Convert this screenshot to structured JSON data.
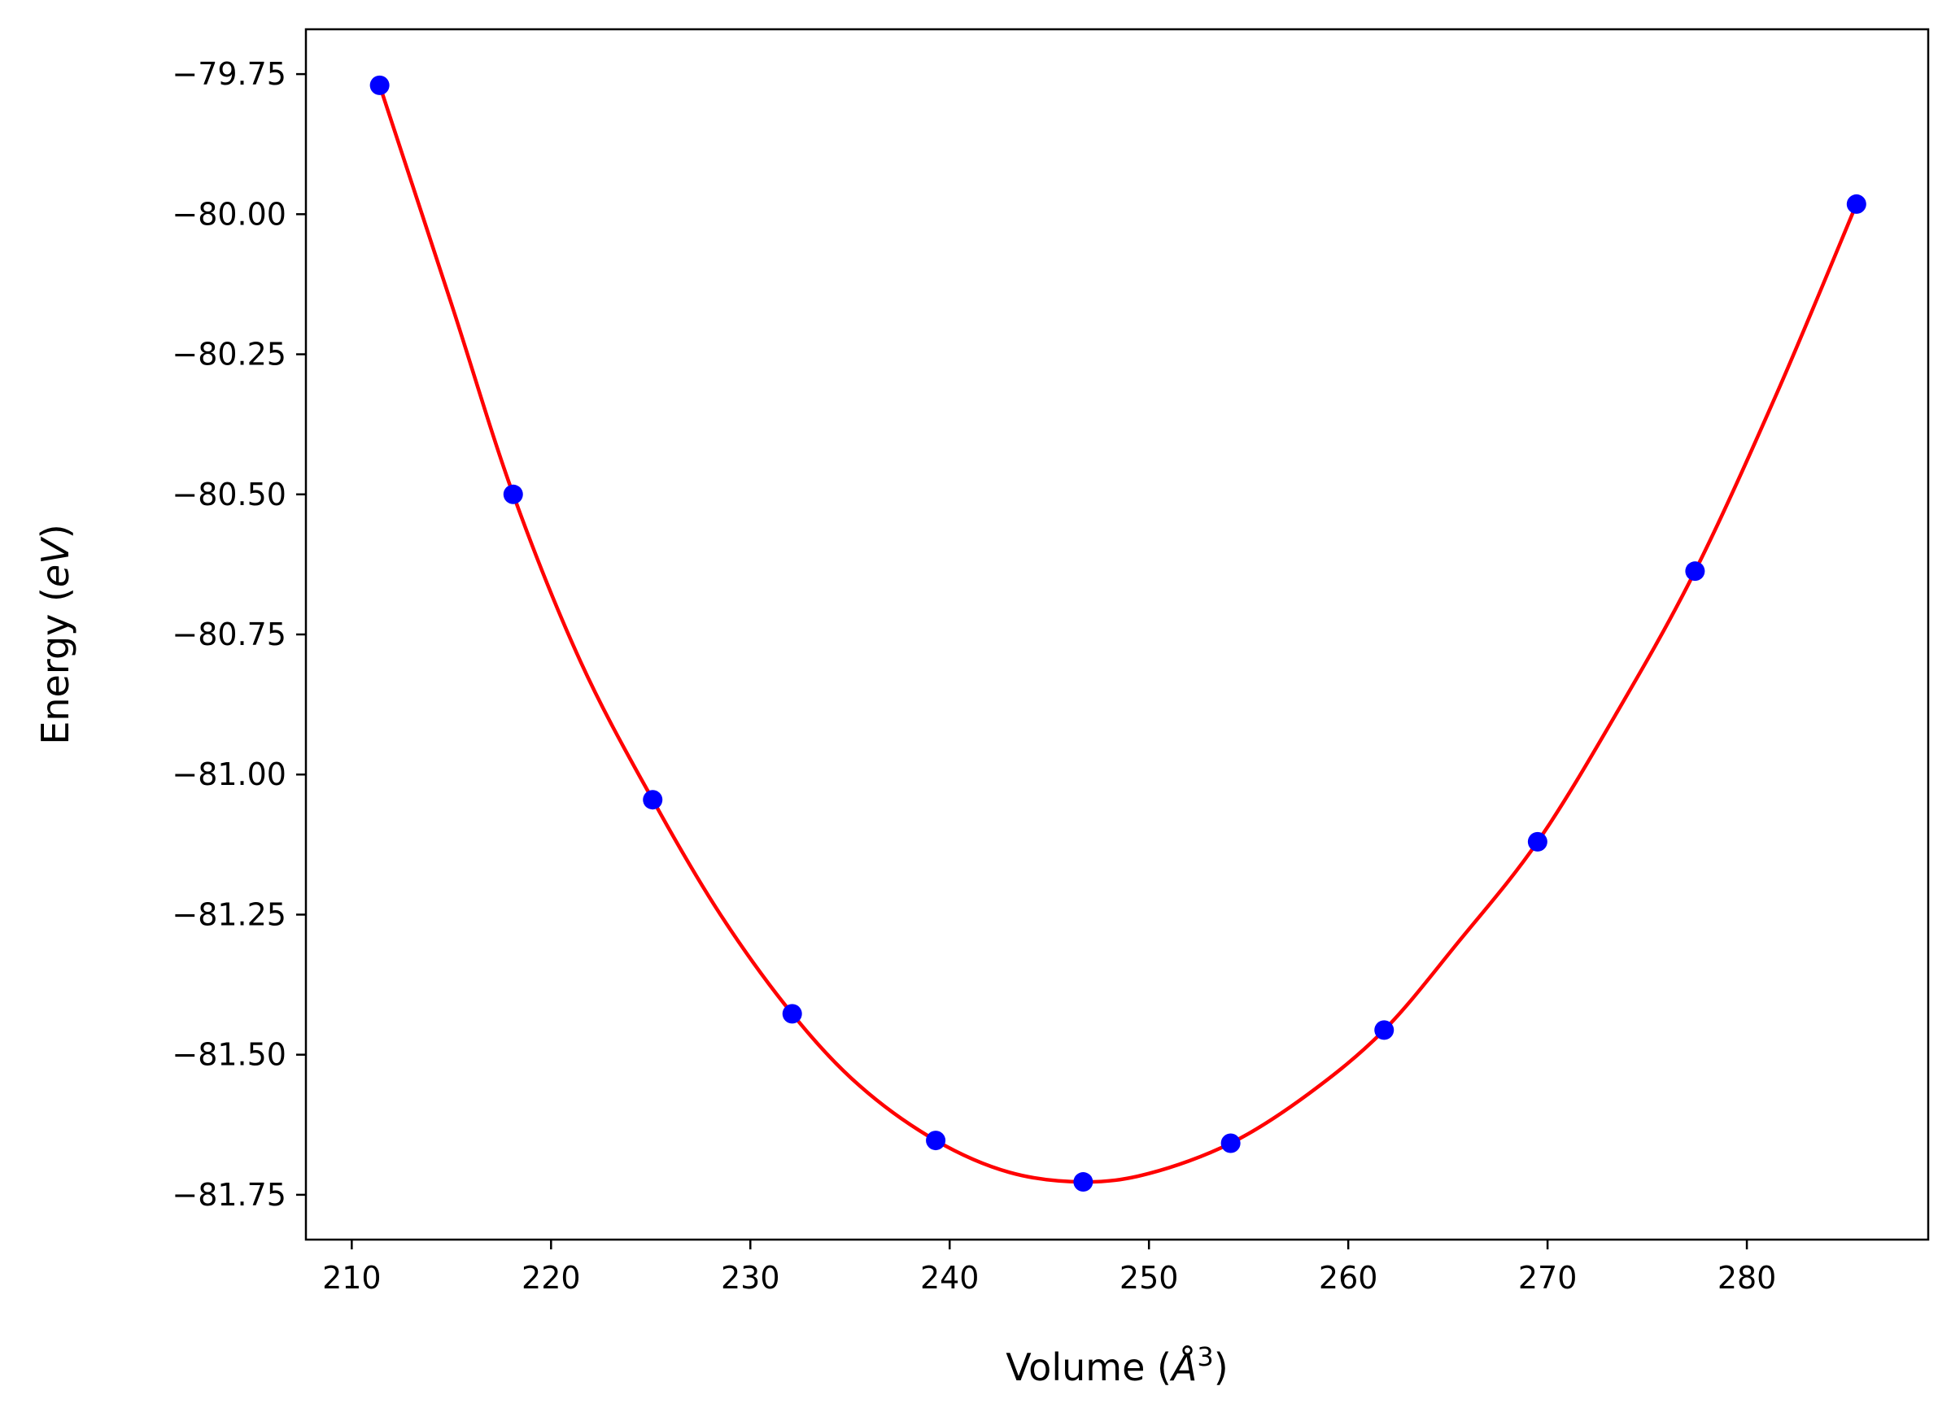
{
  "chart_data": {
    "type": "scatter",
    "title": "",
    "xlabel": {
      "prefix": "Volume (",
      "symbol": "Å",
      "superscript": "3",
      "suffix": ")"
    },
    "ylabel": {
      "prefix": "Energy (",
      "symbol": "eV",
      "suffix": ")"
    },
    "xlim": [
      207.7,
      289.1
    ],
    "ylim": [
      -81.83,
      -79.67
    ],
    "x_ticks": [
      210,
      220,
      230,
      240,
      250,
      260,
      270,
      280
    ],
    "x_tick_labels": [
      "210",
      "220",
      "230",
      "240",
      "250",
      "260",
      "270",
      "280"
    ],
    "y_ticks": [
      -79.75,
      -80.0,
      -80.25,
      -80.5,
      -80.75,
      -81.0,
      -81.25,
      -81.5,
      -81.75
    ],
    "y_tick_labels": [
      "−79.75",
      "−80.00",
      "−80.25",
      "−80.50",
      "−80.75",
      "−81.00",
      "−81.25",
      "−81.50",
      "−81.75"
    ],
    "grid": false,
    "series": [
      {
        "kind": "points",
        "color": "#0000ff",
        "x": [
          211.4,
          218.1,
          225.1,
          232.1,
          239.3,
          246.7,
          254.1,
          261.8,
          269.5,
          277.4,
          285.5
        ],
        "y": [
          -79.77,
          -80.5,
          -81.045,
          -81.427,
          -81.653,
          -81.727,
          -81.658,
          -81.456,
          -81.12,
          -80.637,
          -79.982
        ]
      },
      {
        "kind": "fit-curve",
        "color": "#ff0000",
        "x": [
          211.4,
          215.0,
          218.1,
          221.5,
          225.1,
          228.5,
          232.1,
          235.5,
          239.3,
          243.0,
          246.7,
          250.0,
          254.1,
          258.0,
          261.8,
          265.5,
          269.5,
          273.5,
          277.4,
          281.5,
          285.5
        ],
        "y": [
          -79.77,
          -80.16,
          -80.5,
          -80.8,
          -81.045,
          -81.25,
          -81.427,
          -81.556,
          -81.653,
          -81.71,
          -81.727,
          -81.712,
          -81.658,
          -81.57,
          -81.456,
          -81.3,
          -81.12,
          -80.888,
          -80.637,
          -80.32,
          -79.982
        ]
      }
    ]
  }
}
